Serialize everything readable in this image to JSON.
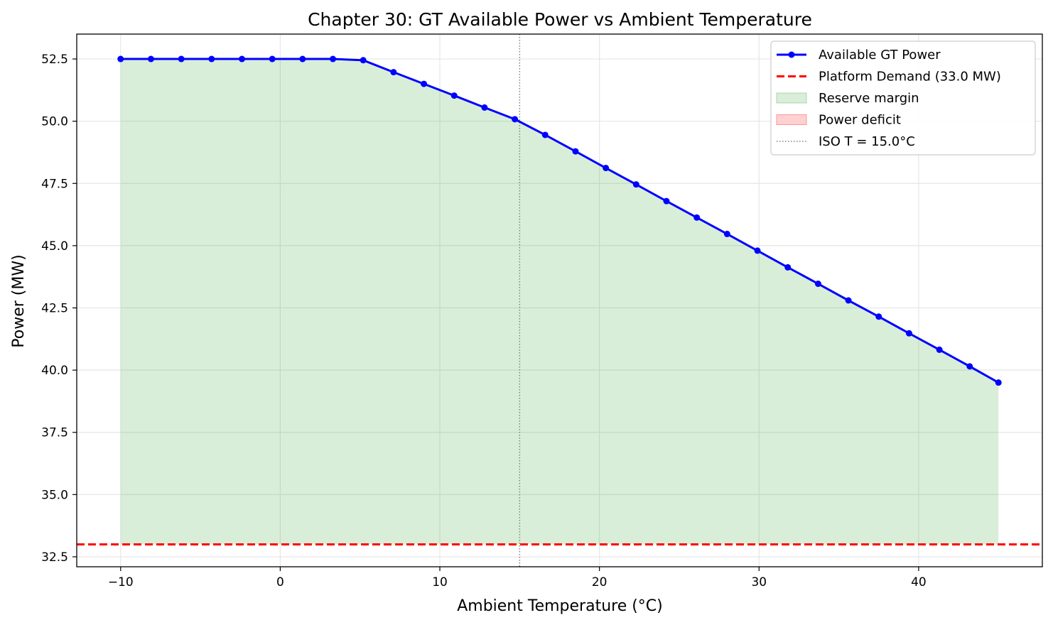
{
  "chart_data": {
    "type": "line",
    "title": "Chapter 30: GT Available Power vs Ambient Temperature",
    "xlabel": "Ambient Temperature (°C)",
    "ylabel": "Power (MW)",
    "xlim": [
      -12.75,
      47.75
    ],
    "ylim": [
      32.1,
      53.5
    ],
    "x_ticks": [
      -10,
      0,
      10,
      20,
      30,
      40
    ],
    "x_tick_labels": [
      "−10",
      "0",
      "10",
      "20",
      "30",
      "40"
    ],
    "y_ticks": [
      32.5,
      35.0,
      37.5,
      40.0,
      42.5,
      45.0,
      47.5,
      50.0,
      52.5
    ],
    "y_tick_labels": [
      "32.5",
      "35.0",
      "37.5",
      "40.0",
      "42.5",
      "45.0",
      "47.5",
      "50.0",
      "52.5"
    ],
    "grid": true,
    "legend_position": "top-right",
    "demand_mw": 33.0,
    "iso_temperature_c": 15.0,
    "series": [
      {
        "name": "Available GT Power",
        "color": "#0000ff",
        "x": [
          -10.0,
          -8.1,
          -6.2,
          -4.3,
          -2.4,
          -0.5,
          1.4,
          3.3,
          5.2,
          7.1,
          9.0,
          10.9,
          12.8,
          14.7,
          16.6,
          18.5,
          20.4,
          22.3,
          24.2,
          26.1,
          28.0,
          29.9,
          31.8,
          33.7,
          35.6,
          37.5,
          39.4,
          41.3,
          43.2,
          45.0
        ],
        "values": [
          52.5,
          52.5,
          52.5,
          52.5,
          52.5,
          52.5,
          52.5,
          52.5,
          52.45,
          51.97,
          51.5,
          51.03,
          50.55,
          50.08,
          49.45,
          48.79,
          48.12,
          47.46,
          46.79,
          46.13,
          45.47,
          44.8,
          44.13,
          43.47,
          42.8,
          42.15,
          41.48,
          40.82,
          40.15,
          39.5
        ]
      }
    ],
    "legend": [
      {
        "label": "Available GT Power",
        "kind": "line-marker",
        "color": "#0000ff"
      },
      {
        "label": "Platform Demand (33.0 MW)",
        "kind": "dashed",
        "color": "#ff0000"
      },
      {
        "label": "Reserve margin",
        "kind": "patch",
        "color": "#2ca02c"
      },
      {
        "label": "Power deficit",
        "kind": "patch",
        "color": "#ff0000"
      },
      {
        "label": "ISO T = 15.0°C",
        "kind": "dotted",
        "color": "#808080"
      }
    ],
    "colors": {
      "reserve_fill": "#d9ebd9",
      "deficit_fill": "#ffd6d6",
      "demand_line": "#ff0000",
      "iso_line": "#808080",
      "grid": "#e6e6e6"
    }
  }
}
